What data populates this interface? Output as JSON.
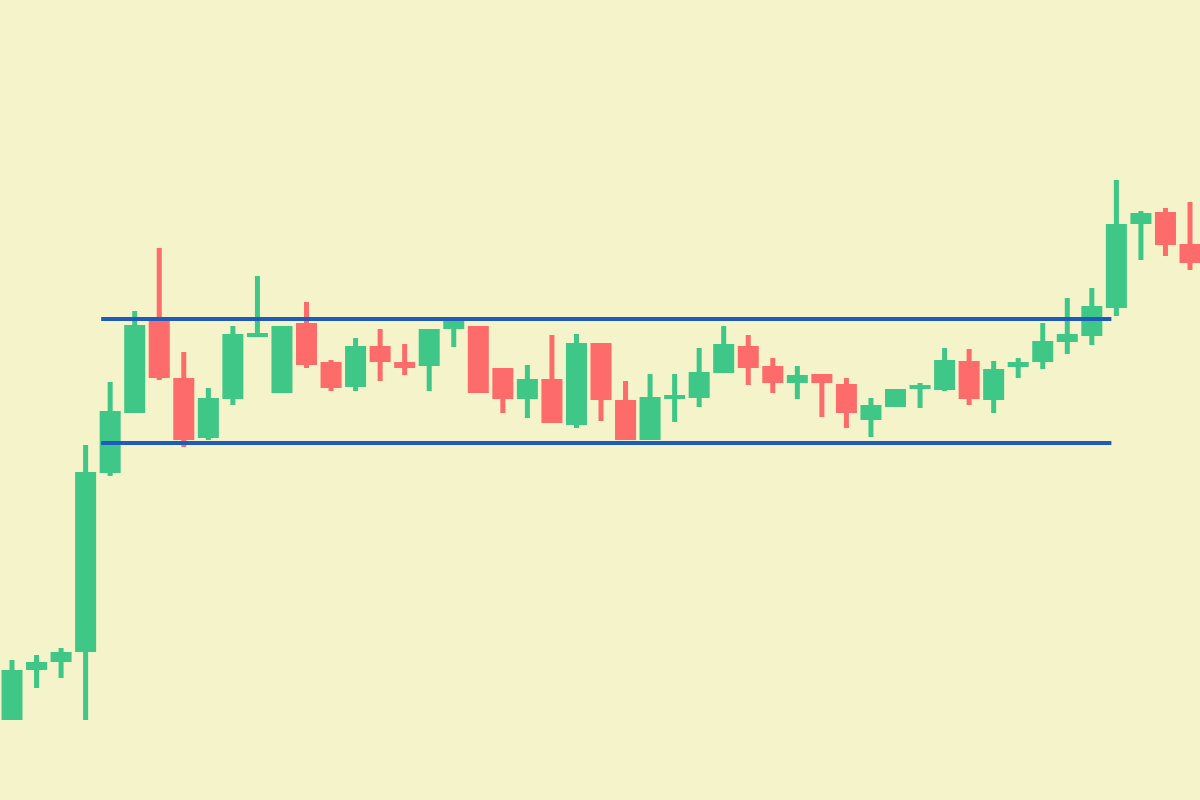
{
  "chart_data": {
    "type": "candlestick",
    "title": "",
    "xlabel": "",
    "ylabel": "",
    "axes_visible": false,
    "grid": false,
    "ylim": [
      0,
      800
    ],
    "colors": {
      "background": "#f5f3c9",
      "bullish": "#3ec786",
      "bearish": "#fd6b6b",
      "level_line": "#1f5bbd"
    },
    "levels": [
      {
        "kind": "resistance",
        "value": 481,
        "from_candle": 4,
        "to_candle": 45
      },
      {
        "kind": "support",
        "value": 357,
        "from_candle": 4,
        "to_candle": 45
      }
    ],
    "candles": [
      {
        "o": 80,
        "h": 140,
        "l": 80,
        "c": 130
      },
      {
        "o": 130,
        "h": 145,
        "l": 112,
        "c": 138
      },
      {
        "o": 138,
        "h": 152,
        "l": 122,
        "c": 148
      },
      {
        "o": 148,
        "h": 355,
        "l": 80,
        "c": 328
      },
      {
        "o": 327,
        "h": 418,
        "l": 324,
        "c": 389
      },
      {
        "o": 387,
        "h": 489,
        "l": 387,
        "c": 475
      },
      {
        "o": 480,
        "h": 552,
        "l": 420,
        "c": 422
      },
      {
        "o": 422,
        "h": 448,
        "l": 353,
        "c": 360
      },
      {
        "o": 362,
        "h": 412,
        "l": 360,
        "c": 402
      },
      {
        "o": 401,
        "h": 474,
        "l": 395,
        "c": 466
      },
      {
        "o": 464,
        "h": 524,
        "l": 463,
        "c": 467
      },
      {
        "o": 407,
        "h": 474,
        "l": 407,
        "c": 474
      },
      {
        "o": 477,
        "h": 498,
        "l": 432,
        "c": 435
      },
      {
        "o": 438,
        "h": 440,
        "l": 409,
        "c": 412
      },
      {
        "o": 413,
        "h": 462,
        "l": 409,
        "c": 454
      },
      {
        "o": 454,
        "h": 471,
        "l": 419,
        "c": 438
      },
      {
        "o": 438,
        "h": 456,
        "l": 425,
        "c": 432
      },
      {
        "o": 434,
        "h": 471,
        "l": 409,
        "c": 471
      },
      {
        "o": 471,
        "h": 482,
        "l": 453,
        "c": 479
      },
      {
        "o": 474,
        "h": 474,
        "l": 407,
        "c": 407
      },
      {
        "o": 432,
        "h": 432,
        "l": 387,
        "c": 401
      },
      {
        "o": 401,
        "h": 435,
        "l": 382,
        "c": 421
      },
      {
        "o": 421,
        "h": 465,
        "l": 377,
        "c": 377
      },
      {
        "o": 375,
        "h": 466,
        "l": 372,
        "c": 457
      },
      {
        "o": 457,
        "h": 457,
        "l": 379,
        "c": 400
      },
      {
        "o": 400,
        "h": 419,
        "l": 360,
        "c": 360
      },
      {
        "o": 360,
        "h": 426,
        "l": 360,
        "c": 403
      },
      {
        "o": 402,
        "h": 426,
        "l": 378,
        "c": 405
      },
      {
        "o": 402,
        "h": 452,
        "l": 393,
        "c": 428
      },
      {
        "o": 427,
        "h": 474,
        "l": 427,
        "c": 456
      },
      {
        "o": 454,
        "h": 465,
        "l": 415,
        "c": 432
      },
      {
        "o": 434,
        "h": 442,
        "l": 407,
        "c": 417
      },
      {
        "o": 417,
        "h": 434,
        "l": 401,
        "c": 425
      },
      {
        "o": 426,
        "h": 426,
        "l": 383,
        "c": 417
      },
      {
        "o": 416,
        "h": 422,
        "l": 372,
        "c": 387
      },
      {
        "o": 380,
        "h": 402,
        "l": 363,
        "c": 395
      },
      {
        "o": 393,
        "h": 411,
        "l": 393,
        "c": 411
      },
      {
        "o": 411,
        "h": 417,
        "l": 392,
        "c": 415
      },
      {
        "o": 410,
        "h": 452,
        "l": 409,
        "c": 440
      },
      {
        "o": 439,
        "h": 451,
        "l": 395,
        "c": 401
      },
      {
        "o": 400,
        "h": 439,
        "l": 387,
        "c": 431
      },
      {
        "o": 433,
        "h": 442,
        "l": 422,
        "c": 438
      },
      {
        "o": 438,
        "h": 477,
        "l": 431,
        "c": 459
      },
      {
        "o": 458,
        "h": 502,
        "l": 446,
        "c": 466
      },
      {
        "o": 464,
        "h": 512,
        "l": 455,
        "c": 494
      },
      {
        "o": 492,
        "h": 620,
        "l": 484,
        "c": 576
      },
      {
        "o": 576,
        "h": 589,
        "l": 540,
        "c": 587
      },
      {
        "o": 588,
        "h": 592,
        "l": 544,
        "c": 555
      },
      {
        "o": 556,
        "h": 598,
        "l": 530,
        "c": 537
      }
    ]
  }
}
